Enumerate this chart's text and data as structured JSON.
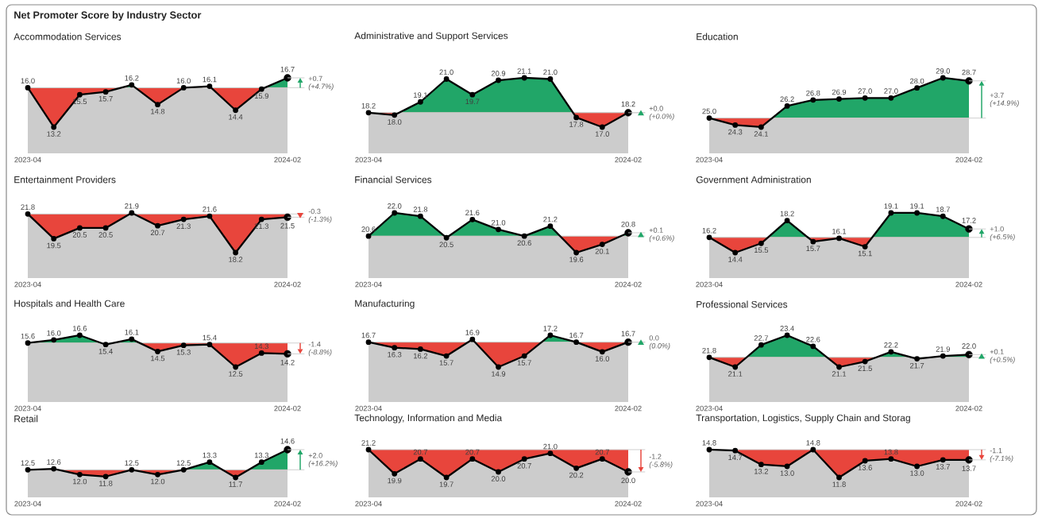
{
  "chart_data": [
    {
      "type": "other",
      "title": "Net Promoter Score by Industry Sector"
    },
    {
      "type": "line",
      "title": "Accommodation Services",
      "categories": [
        "2023-04",
        null,
        null,
        null,
        null,
        null,
        null,
        null,
        null,
        null,
        "2024-02"
      ],
      "series": [
        {
          "values": [
            16.0,
            13.2,
            15.5,
            15.7,
            16.2,
            14.8,
            16.0,
            16.1,
            14.4,
            15.9,
            16.7
          ],
          "value_labels": [
            "16.0",
            "13.2",
            "15.5",
            "15.7",
            "16.2",
            "14.8",
            "16.0",
            "16.1",
            "14.4",
            "15.9",
            "16.7"
          ],
          "color": "#000000"
        }
      ],
      "marker": "circle",
      "tick_labels": "x",
      "ref_lines": [
        {
          "axis": "y",
          "value": 16.0,
          "color": "#cccccc"
        }
      ],
      "colors": [
        "#21a668",
        "#e8453c"
      ],
      "annotations": [
        "+0.7",
        "(+4.7%)"
      ]
    },
    {
      "type": "line",
      "title": "Administrative and Support Services",
      "categories": [
        "2023-04",
        null,
        null,
        null,
        null,
        null,
        null,
        null,
        null,
        null,
        "2024-02"
      ],
      "series": [
        {
          "values": [
            18.2,
            18.0,
            19.1,
            21.0,
            19.7,
            20.9,
            21.1,
            21.0,
            17.8,
            17.0,
            18.2
          ],
          "value_labels": [
            "18.2",
            "18.0",
            "19.1",
            "21.0",
            "19.7",
            "20.9",
            "21.1",
            "21.0",
            "17.8",
            "17.0",
            "18.2"
          ],
          "color": "#000000"
        }
      ],
      "marker": "circle",
      "tick_labels": "x",
      "ref_lines": [
        {
          "axis": "y",
          "value": 18.2,
          "color": "#cccccc"
        }
      ],
      "colors": [
        "#21a668",
        "#e8453c"
      ],
      "annotations": [
        "+0.0",
        "(+0.0%)"
      ]
    },
    {
      "type": "line",
      "title": "Education",
      "categories": [
        "2023-04",
        null,
        null,
        null,
        null,
        null,
        null,
        null,
        null,
        null,
        "2024-02"
      ],
      "series": [
        {
          "values": [
            25.0,
            24.3,
            24.1,
            26.2,
            26.8,
            26.9,
            27.0,
            27.0,
            28.0,
            29.0,
            28.7
          ],
          "value_labels": [
            "25.0",
            "24.3",
            "24.1",
            "26.2",
            "26.8",
            "26.9",
            "27.0",
            "27.0",
            "28.0",
            "29.0",
            "28.7"
          ],
          "color": "#000000"
        }
      ],
      "marker": "circle",
      "tick_labels": "x",
      "ref_lines": [
        {
          "axis": "y",
          "value": 25.0,
          "color": "#cccccc"
        }
      ],
      "colors": [
        "#21a668",
        "#e8453c"
      ],
      "annotations": [
        "+3.7",
        "(+14.9%)"
      ]
    },
    {
      "type": "line",
      "title": "Entertainment Providers",
      "categories": [
        "2023-04",
        null,
        null,
        null,
        null,
        null,
        null,
        null,
        null,
        null,
        "2024-02"
      ],
      "series": [
        {
          "values": [
            21.8,
            19.5,
            20.5,
            20.5,
            21.9,
            20.7,
            21.3,
            21.6,
            18.2,
            21.3,
            21.5
          ],
          "value_labels": [
            "21.8",
            "19.5",
            "20.5",
            "20.5",
            "21.9",
            "20.7",
            "21.3",
            "21.6",
            "18.2",
            "21.3",
            "21.5"
          ],
          "color": "#000000"
        }
      ],
      "marker": "circle",
      "tick_labels": "x",
      "ref_lines": [
        {
          "axis": "y",
          "value": 21.8,
          "color": "#cccccc"
        }
      ],
      "colors": [
        "#21a668",
        "#e8453c"
      ],
      "annotations": [
        "-0.3",
        "(-1.3%)"
      ]
    },
    {
      "type": "line",
      "title": "Financial Services",
      "categories": [
        "2023-04",
        null,
        null,
        null,
        null,
        null,
        null,
        null,
        null,
        null,
        "2024-02"
      ],
      "series": [
        {
          "values": [
            20.6,
            22.0,
            21.8,
            20.5,
            21.6,
            21.0,
            20.6,
            21.2,
            19.6,
            20.1,
            20.8
          ],
          "value_labels": [
            "20.6",
            "22.0",
            "21.8",
            "20.5",
            "21.6",
            "21.0",
            "20.6",
            "21.2",
            "19.6",
            "20.1",
            "20.8"
          ],
          "color": "#000000"
        }
      ],
      "marker": "circle",
      "tick_labels": "x",
      "ref_lines": [
        {
          "axis": "y",
          "value": 20.6,
          "color": "#cccccc"
        }
      ],
      "colors": [
        "#21a668",
        "#e8453c"
      ],
      "annotations": [
        "+0.1",
        "(+0.6%)"
      ]
    },
    {
      "type": "line",
      "title": "Government Administration",
      "categories": [
        "2023-04",
        null,
        null,
        null,
        null,
        null,
        null,
        null,
        null,
        null,
        "2024-02"
      ],
      "series": [
        {
          "values": [
            16.2,
            14.4,
            15.5,
            18.2,
            15.7,
            16.1,
            15.1,
            19.1,
            19.1,
            18.7,
            17.2
          ],
          "value_labels": [
            "16.2",
            "14.4",
            "15.5",
            "18.2",
            "15.7",
            "16.1",
            "15.1",
            "19.1",
            "19.1",
            "18.7",
            "17.2"
          ],
          "color": "#000000"
        }
      ],
      "marker": "circle",
      "tick_labels": "x",
      "ref_lines": [
        {
          "axis": "y",
          "value": 16.2,
          "color": "#cccccc"
        }
      ],
      "colors": [
        "#21a668",
        "#e8453c"
      ],
      "annotations": [
        "+1.0",
        "(+6.5%)"
      ]
    },
    {
      "type": "line",
      "title": "Hospitals and Health Care",
      "categories": [
        "2023-04",
        null,
        null,
        null,
        null,
        null,
        null,
        null,
        null,
        null,
        "2024-02"
      ],
      "series": [
        {
          "values": [
            15.6,
            16.0,
            16.6,
            15.4,
            16.1,
            14.5,
            15.3,
            15.4,
            12.5,
            14.3,
            14.2
          ],
          "value_labels": [
            "15.6",
            "16.0",
            "16.6",
            "15.4",
            "16.1",
            "14.5",
            "15.3",
            "15.4",
            "12.5",
            "14.3",
            "14.2"
          ],
          "color": "#000000"
        }
      ],
      "marker": "circle",
      "tick_labels": "x",
      "ref_lines": [
        {
          "axis": "y",
          "value": 15.6,
          "color": "#cccccc"
        }
      ],
      "colors": [
        "#21a668",
        "#e8453c"
      ],
      "annotations": [
        "-1.4",
        "(-8.8%)"
      ]
    },
    {
      "type": "line",
      "title": "Manufacturing",
      "categories": [
        "2023-04",
        null,
        null,
        null,
        null,
        null,
        null,
        null,
        null,
        null,
        "2024-02"
      ],
      "series": [
        {
          "values": [
            16.7,
            16.3,
            16.2,
            15.7,
            16.9,
            14.9,
            15.7,
            17.2,
            16.7,
            16.0,
            16.7
          ],
          "value_labels": [
            "16.7",
            "16.3",
            "16.2",
            "15.7",
            "16.9",
            "14.9",
            "15.7",
            "17.2",
            "16.7",
            "16.0",
            "16.7"
          ],
          "color": "#000000"
        }
      ],
      "marker": "circle",
      "tick_labels": "x",
      "ref_lines": [
        {
          "axis": "y",
          "value": 16.7,
          "color": "#cccccc"
        }
      ],
      "colors": [
        "#21a668",
        "#e8453c"
      ],
      "annotations": [
        "0.0",
        "(0.0%)"
      ]
    },
    {
      "type": "line",
      "title": "Professional Services",
      "categories": [
        "2023-04",
        null,
        null,
        null,
        null,
        null,
        null,
        null,
        null,
        null,
        "2024-02"
      ],
      "series": [
        {
          "values": [
            21.8,
            21.1,
            22.7,
            23.4,
            22.6,
            21.1,
            21.5,
            22.2,
            21.7,
            21.9,
            22.0
          ],
          "value_labels": [
            "21.8",
            "21.1",
            "22.7",
            "23.4",
            "22.6",
            "21.1",
            "21.5",
            "22.2",
            "21.7",
            "21.9",
            "22.0"
          ],
          "color": "#000000"
        }
      ],
      "marker": "circle",
      "tick_labels": "x",
      "ref_lines": [
        {
          "axis": "y",
          "value": 21.8,
          "color": "#cccccc"
        }
      ],
      "colors": [
        "#21a668",
        "#e8453c"
      ],
      "annotations": [
        "+0.1",
        "(+0.5%)"
      ]
    },
    {
      "type": "line",
      "title": "Retail",
      "categories": [
        "2023-04",
        null,
        null,
        null,
        null,
        null,
        null,
        null,
        null,
        null,
        "2024-02"
      ],
      "series": [
        {
          "values": [
            12.5,
            12.6,
            12.0,
            11.8,
            12.5,
            12.0,
            12.5,
            13.3,
            11.7,
            13.3,
            14.6
          ],
          "value_labels": [
            "12.5",
            "12.6",
            "12.0",
            "11.8",
            "12.5",
            "12.0",
            "12.5",
            "13.3",
            "11.7",
            "13.3",
            "14.6"
          ],
          "color": "#000000"
        }
      ],
      "marker": "circle",
      "tick_labels": "x",
      "ref_lines": [
        {
          "axis": "y",
          "value": 12.5,
          "color": "#cccccc"
        }
      ],
      "colors": [
        "#21a668",
        "#e8453c"
      ],
      "annotations": [
        "+2.0",
        "(+16.2%)"
      ]
    },
    {
      "type": "line",
      "title": "Technology, Information and Media",
      "categories": [
        "2023-04",
        null,
        null,
        null,
        null,
        null,
        null,
        null,
        null,
        null,
        "2024-02"
      ],
      "series": [
        {
          "values": [
            21.2,
            19.9,
            20.7,
            19.7,
            20.7,
            20.0,
            20.7,
            21.0,
            20.2,
            20.7,
            20.0
          ],
          "value_labels": [
            "21.2",
            "19.9",
            "20.7",
            "19.7",
            "20.7",
            "20.0",
            "20.7",
            "21.0",
            "20.2",
            "20.7",
            "20.0"
          ],
          "color": "#000000"
        }
      ],
      "marker": "circle",
      "tick_labels": "x",
      "ref_lines": [
        {
          "axis": "y",
          "value": 21.2,
          "color": "#cccccc"
        }
      ],
      "colors": [
        "#21a668",
        "#e8453c"
      ],
      "annotations": [
        "-1.2",
        "(-5.8%)"
      ]
    },
    {
      "type": "line",
      "title": "Transportation, Logistics, Supply Chain and Storag",
      "categories": [
        "2023-04",
        null,
        null,
        null,
        null,
        null,
        null,
        null,
        null,
        null,
        "2024-02"
      ],
      "series": [
        {
          "values": [
            14.8,
            14.7,
            13.2,
            13.0,
            14.8,
            11.8,
            13.6,
            13.8,
            13.0,
            13.7,
            13.7
          ],
          "value_labels": [
            "14.8",
            "14.7",
            "13.2",
            "13.0",
            "14.8",
            "11.8",
            "13.6",
            "13.8",
            "13.0",
            "13.7",
            "13.7"
          ],
          "color": "#000000"
        }
      ],
      "marker": "circle",
      "tick_labels": "x",
      "ref_lines": [
        {
          "axis": "y",
          "value": 14.8,
          "color": "#cccccc"
        }
      ],
      "colors": [
        "#21a668",
        "#e8453c"
      ],
      "annotations": [
        "-1.1",
        "(-7.1%)"
      ]
    }
  ]
}
